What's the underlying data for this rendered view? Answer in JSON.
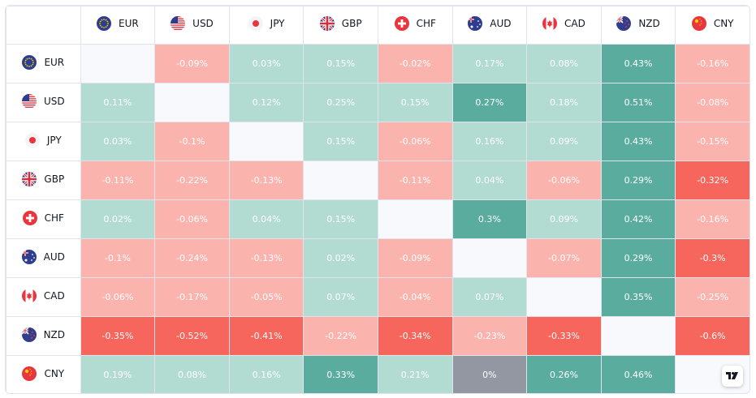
{
  "currencies": [
    {
      "code": "EUR",
      "flag": "eu-flag-icon"
    },
    {
      "code": "USD",
      "flag": "us-flag-icon"
    },
    {
      "code": "JPY",
      "flag": "jp-flag-icon"
    },
    {
      "code": "GBP",
      "flag": "gb-flag-icon"
    },
    {
      "code": "CHF",
      "flag": "ch-flag-icon"
    },
    {
      "code": "AUD",
      "flag": "au-flag-icon"
    },
    {
      "code": "CAD",
      "flag": "ca-flag-icon"
    },
    {
      "code": "NZD",
      "flag": "nz-flag-icon"
    },
    {
      "code": "CNY",
      "flag": "cn-flag-icon"
    }
  ],
  "matrix": [
    [
      "",
      "-0.09%",
      "0.03%",
      "0.15%",
      "-0.02%",
      "0.17%",
      "0.08%",
      "0.43%",
      "-0.16%"
    ],
    [
      "0.11%",
      "",
      "0.12%",
      "0.25%",
      "0.15%",
      "0.27%",
      "0.18%",
      "0.51%",
      "-0.08%"
    ],
    [
      "0.03%",
      "-0.1%",
      "",
      "0.15%",
      "-0.06%",
      "0.16%",
      "0.09%",
      "0.43%",
      "-0.15%"
    ],
    [
      "-0.11%",
      "-0.22%",
      "-0.13%",
      "",
      "-0.11%",
      "0.04%",
      "-0.06%",
      "0.29%",
      "-0.32%"
    ],
    [
      "0.02%",
      "-0.06%",
      "0.04%",
      "0.15%",
      "",
      "0.3%",
      "0.09%",
      "0.42%",
      "-0.16%"
    ],
    [
      "-0.1%",
      "-0.24%",
      "-0.13%",
      "0.02%",
      "-0.09%",
      "",
      "-0.07%",
      "0.29%",
      "-0.3%"
    ],
    [
      "-0.06%",
      "-0.17%",
      "-0.05%",
      "0.07%",
      "-0.04%",
      "0.07%",
      "",
      "0.35%",
      "-0.25%"
    ],
    [
      "-0.35%",
      "-0.52%",
      "-0.41%",
      "-0.22%",
      "-0.34%",
      "-0.23%",
      "-0.33%",
      "",
      "-0.6%"
    ],
    [
      "0.19%",
      "0.08%",
      "0.16%",
      "0.33%",
      "0.21%",
      "0%",
      "0.26%",
      "0.46%",
      ""
    ]
  ],
  "colors": {
    "positive_light": "#b2dbd2",
    "positive_strong": "#5aac9e",
    "negative_light": "#fbb3ae",
    "negative_strong": "#f7665c",
    "neutral": "#9397a1",
    "diagonal": "#f8f9fd"
  },
  "thresholds": {
    "strong": 0.26
  },
  "branding": {
    "logo": "tradingview-logo-icon"
  }
}
